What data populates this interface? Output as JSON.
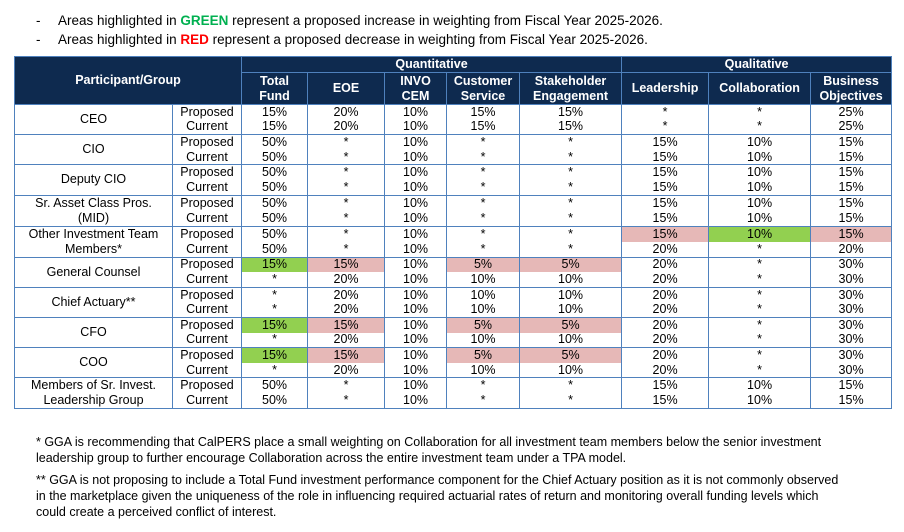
{
  "notes": [
    {
      "bullet": "-",
      "prefix": "Areas highlighted in ",
      "keyword": "GREEN",
      "keyword_color": "#00b050",
      "suffix": " represent a proposed increase in weighting from Fiscal Year 2025-2026."
    },
    {
      "bullet": "-",
      "prefix": "Areas highlighted in ",
      "keyword": "RED",
      "keyword_color": "#ff0000",
      "suffix": " represent a proposed decrease in weighting from Fiscal Year 2025-2026."
    }
  ],
  "table": {
    "highlight_colors": {
      "green": "#92d050",
      "red": "#e6b8b7"
    },
    "group_header": [
      {
        "label": "Quantitative",
        "span": 5
      },
      {
        "label": "Qualitative",
        "span": 3
      }
    ],
    "first_column": "Participant/Group",
    "columns": [
      "Total\nFund",
      "EOE",
      "INVO\nCEM",
      "Customer\nService",
      "Stakeholder\nEngagement",
      "Leadership",
      "Collaboration",
      "Business\nObjectives"
    ],
    "groups": [
      {
        "name": "CEO",
        "rows": [
          {
            "label": "Proposed",
            "values": [
              "15%",
              "20%",
              "10%",
              "15%",
              "15%",
              "*",
              "*",
              "25%"
            ],
            "highlight": [
              null,
              null,
              null,
              null,
              null,
              null,
              null,
              null
            ]
          },
          {
            "label": "Current",
            "values": [
              "15%",
              "20%",
              "10%",
              "15%",
              "15%",
              "*",
              "*",
              "25%"
            ],
            "highlight": [
              null,
              null,
              null,
              null,
              null,
              null,
              null,
              null
            ]
          }
        ]
      },
      {
        "name": "CIO",
        "rows": [
          {
            "label": "Proposed",
            "values": [
              "50%",
              "*",
              "10%",
              "*",
              "*",
              "15%",
              "10%",
              "15%"
            ],
            "highlight": [
              null,
              null,
              null,
              null,
              null,
              null,
              null,
              null
            ]
          },
          {
            "label": "Current",
            "values": [
              "50%",
              "*",
              "10%",
              "*",
              "*",
              "15%",
              "10%",
              "15%"
            ],
            "highlight": [
              null,
              null,
              null,
              null,
              null,
              null,
              null,
              null
            ]
          }
        ]
      },
      {
        "name": "Deputy CIO",
        "rows": [
          {
            "label": "Proposed",
            "values": [
              "50%",
              "*",
              "10%",
              "*",
              "*",
              "15%",
              "10%",
              "15%"
            ],
            "highlight": [
              null,
              null,
              null,
              null,
              null,
              null,
              null,
              null
            ]
          },
          {
            "label": "Current",
            "values": [
              "50%",
              "*",
              "10%",
              "*",
              "*",
              "15%",
              "10%",
              "15%"
            ],
            "highlight": [
              null,
              null,
              null,
              null,
              null,
              null,
              null,
              null
            ]
          }
        ]
      },
      {
        "name": "Sr. Asset Class Pros.\n(MID)",
        "rows": [
          {
            "label": "Proposed",
            "values": [
              "50%",
              "*",
              "10%",
              "*",
              "*",
              "15%",
              "10%",
              "15%"
            ],
            "highlight": [
              null,
              null,
              null,
              null,
              null,
              null,
              null,
              null
            ]
          },
          {
            "label": "Current",
            "values": [
              "50%",
              "*",
              "10%",
              "*",
              "*",
              "15%",
              "10%",
              "15%"
            ],
            "highlight": [
              null,
              null,
              null,
              null,
              null,
              null,
              null,
              null
            ]
          }
        ]
      },
      {
        "name": "Other Investment Team\nMembers*",
        "rows": [
          {
            "label": "Proposed",
            "values": [
              "50%",
              "*",
              "10%",
              "*",
              "*",
              "15%",
              "10%",
              "15%"
            ],
            "highlight": [
              null,
              null,
              null,
              null,
              null,
              "red",
              "green",
              "red"
            ]
          },
          {
            "label": "Current",
            "values": [
              "50%",
              "*",
              "10%",
              "*",
              "*",
              "20%",
              "*",
              "20%"
            ],
            "highlight": [
              null,
              null,
              null,
              null,
              null,
              null,
              null,
              null
            ]
          }
        ]
      },
      {
        "name": "General Counsel",
        "rows": [
          {
            "label": "Proposed",
            "values": [
              "15%",
              "15%",
              "10%",
              "5%",
              "5%",
              "20%",
              "*",
              "30%"
            ],
            "highlight": [
              "green",
              "red",
              null,
              "red",
              "red",
              null,
              null,
              null
            ]
          },
          {
            "label": "Current",
            "values": [
              "*",
              "20%",
              "10%",
              "10%",
              "10%",
              "20%",
              "*",
              "30%"
            ],
            "highlight": [
              null,
              null,
              null,
              null,
              null,
              null,
              null,
              null
            ]
          }
        ]
      },
      {
        "name": "Chief Actuary**",
        "rows": [
          {
            "label": "Proposed",
            "values": [
              "*",
              "20%",
              "10%",
              "10%",
              "10%",
              "20%",
              "*",
              "30%"
            ],
            "highlight": [
              null,
              null,
              null,
              null,
              null,
              null,
              null,
              null
            ]
          },
          {
            "label": "Current",
            "values": [
              "*",
              "20%",
              "10%",
              "10%",
              "10%",
              "20%",
              "*",
              "30%"
            ],
            "highlight": [
              null,
              null,
              null,
              null,
              null,
              null,
              null,
              null
            ]
          }
        ]
      },
      {
        "name": "CFO",
        "rows": [
          {
            "label": "Proposed",
            "values": [
              "15%",
              "15%",
              "10%",
              "5%",
              "5%",
              "20%",
              "*",
              "30%"
            ],
            "highlight": [
              "green",
              "red",
              null,
              "red",
              "red",
              null,
              null,
              null
            ]
          },
          {
            "label": "Current",
            "values": [
              "*",
              "20%",
              "10%",
              "10%",
              "10%",
              "20%",
              "*",
              "30%"
            ],
            "highlight": [
              null,
              null,
              null,
              null,
              null,
              null,
              null,
              null
            ]
          }
        ]
      },
      {
        "name": "COO",
        "rows": [
          {
            "label": "Proposed",
            "values": [
              "15%",
              "15%",
              "10%",
              "5%",
              "5%",
              "20%",
              "*",
              "30%"
            ],
            "highlight": [
              "green",
              "red",
              null,
              "red",
              "red",
              null,
              null,
              null
            ]
          },
          {
            "label": "Current",
            "values": [
              "*",
              "20%",
              "10%",
              "10%",
              "10%",
              "20%",
              "*",
              "30%"
            ],
            "highlight": [
              null,
              null,
              null,
              null,
              null,
              null,
              null,
              null
            ]
          }
        ]
      },
      {
        "name": "Members of Sr. Invest.\nLeadership Group",
        "rows": [
          {
            "label": "Proposed",
            "values": [
              "50%",
              "*",
              "10%",
              "*",
              "*",
              "15%",
              "10%",
              "15%"
            ],
            "highlight": [
              null,
              null,
              null,
              null,
              null,
              null,
              null,
              null
            ]
          },
          {
            "label": "Current",
            "values": [
              "50%",
              "*",
              "10%",
              "*",
              "*",
              "15%",
              "10%",
              "15%"
            ],
            "highlight": [
              null,
              null,
              null,
              null,
              null,
              null,
              null,
              null
            ]
          }
        ]
      }
    ]
  },
  "footnotes": [
    "* GGA is recommending that CalPERS place a small weighting on Collaboration for all investment team members below the senior investment leadership group to further encourage Collaboration across the entire investment team under a TPA model.",
    "** GGA is not proposing to include a Total Fund investment performance component for the Chief Actuary position as it is not commonly observed in the marketplace given the uniqueness of the role in influencing required actuarial rates of return and monitoring overall funding levels which could create a perceived conflict of interest."
  ]
}
